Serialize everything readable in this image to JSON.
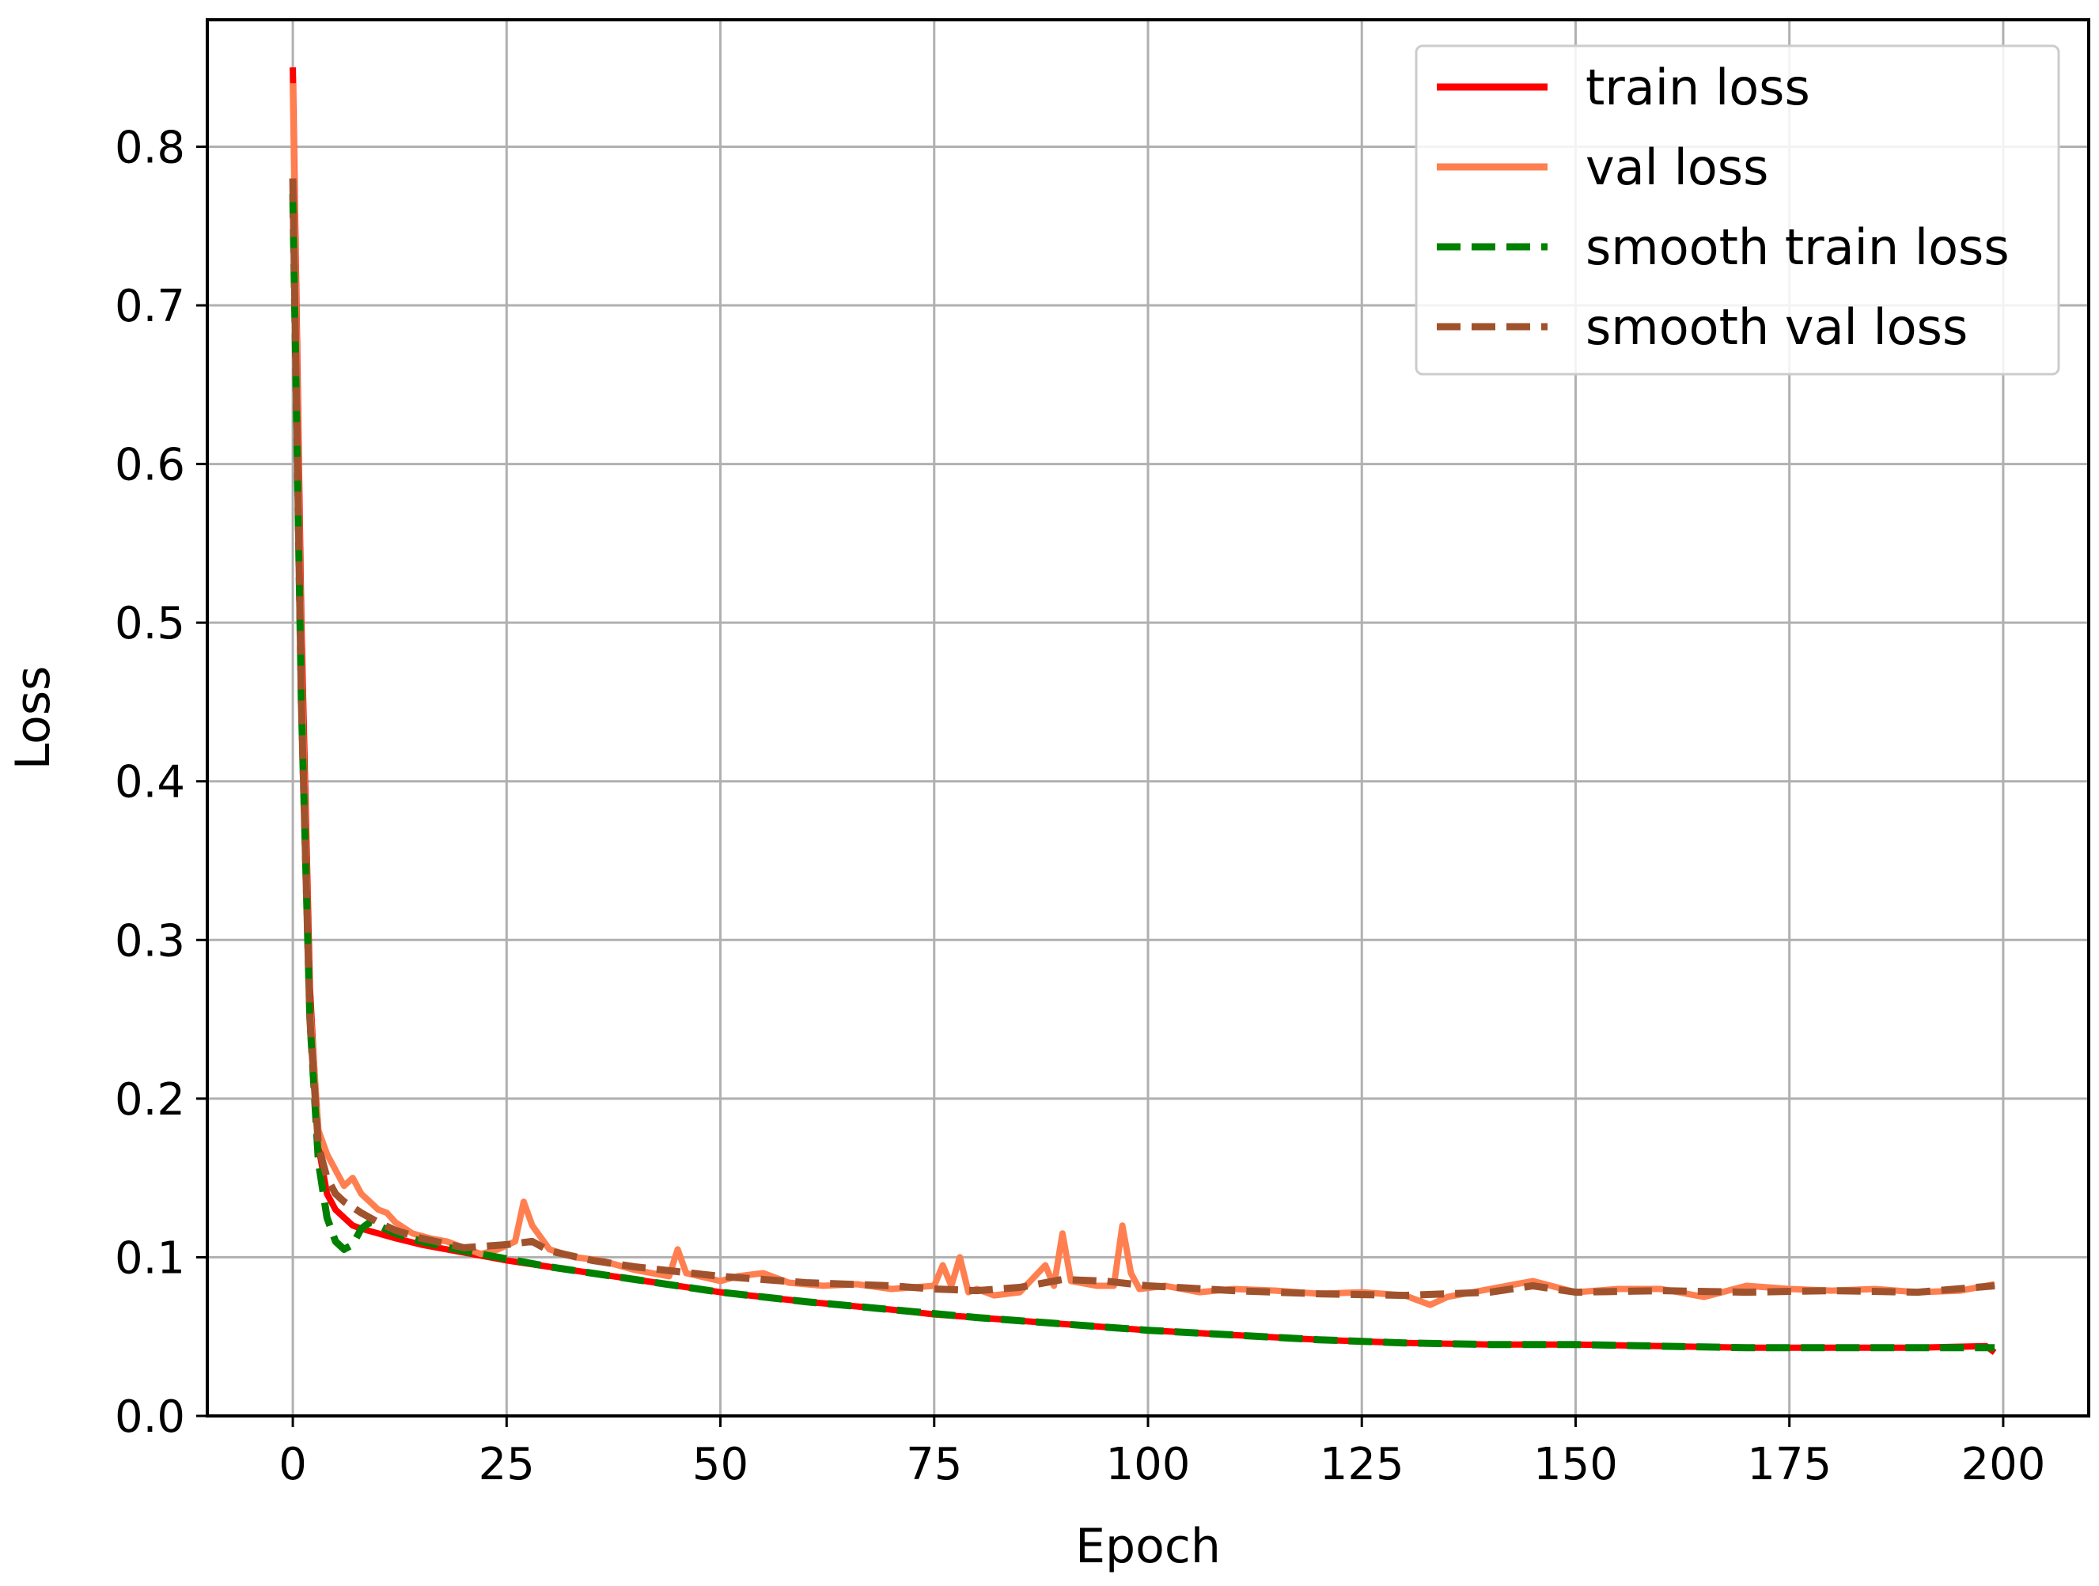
{
  "chart_data": {
    "type": "line",
    "title": "",
    "xlabel": "Epoch",
    "ylabel": "Loss",
    "xlim": [
      -10,
      210
    ],
    "ylim": [
      0.0,
      0.88
    ],
    "xticks": [
      0,
      25,
      50,
      75,
      100,
      125,
      150,
      175,
      200
    ],
    "xtick_labels": [
      "0",
      "25",
      "50",
      "75",
      "100",
      "125",
      "150",
      "175",
      "200"
    ],
    "yticks": [
      0.0,
      0.1,
      0.2,
      0.3,
      0.4,
      0.5,
      0.6,
      0.7,
      0.8
    ],
    "ytick_labels": [
      "0.0",
      "0.1",
      "0.2",
      "0.3",
      "0.4",
      "0.5",
      "0.6",
      "0.7",
      "0.8"
    ],
    "grid": true,
    "legend_position": "top-right",
    "series": [
      {
        "name": "train loss",
        "color": "#ff0000",
        "style": "solid",
        "x": [
          0,
          1,
          2,
          3,
          4,
          5,
          6,
          7,
          8,
          10,
          12,
          15,
          20,
          25,
          30,
          40,
          50,
          60,
          70,
          75,
          80,
          90,
          100,
          110,
          120,
          125,
          130,
          140,
          150,
          160,
          170,
          175,
          180,
          190,
          198,
          199
        ],
        "y": [
          0.85,
          0.5,
          0.27,
          0.17,
          0.14,
          0.13,
          0.125,
          0.12,
          0.118,
          0.115,
          0.112,
          0.108,
          0.103,
          0.098,
          0.094,
          0.086,
          0.078,
          0.072,
          0.067,
          0.064,
          0.062,
          0.058,
          0.054,
          0.051,
          0.048,
          0.047,
          0.046,
          0.045,
          0.045,
          0.044,
          0.043,
          0.043,
          0.043,
          0.043,
          0.044,
          0.04
        ]
      },
      {
        "name": "val loss",
        "color": "#ff7f50",
        "style": "solid",
        "x": [
          0,
          1,
          2,
          3,
          4,
          5,
          6,
          7,
          8,
          9,
          10,
          11,
          12,
          14,
          16,
          18,
          20,
          22,
          24,
          26,
          27,
          28,
          30,
          33,
          36,
          40,
          44,
          45,
          46,
          50,
          52,
          55,
          58,
          62,
          66,
          70,
          75,
          76,
          77,
          78,
          79,
          80,
          82,
          85,
          88,
          89,
          90,
          91,
          94,
          96,
          97,
          98,
          99,
          102,
          106,
          110,
          115,
          120,
          125,
          130,
          133,
          135,
          140,
          145,
          150,
          155,
          160,
          165,
          170,
          175,
          180,
          185,
          190,
          195,
          199
        ],
        "y": [
          0.84,
          0.48,
          0.26,
          0.18,
          0.165,
          0.155,
          0.145,
          0.15,
          0.14,
          0.135,
          0.13,
          0.128,
          0.122,
          0.115,
          0.112,
          0.11,
          0.106,
          0.102,
          0.105,
          0.11,
          0.135,
          0.12,
          0.105,
          0.1,
          0.098,
          0.092,
          0.088,
          0.105,
          0.09,
          0.085,
          0.088,
          0.09,
          0.084,
          0.082,
          0.083,
          0.08,
          0.082,
          0.095,
          0.082,
          0.1,
          0.078,
          0.08,
          0.076,
          0.078,
          0.095,
          0.082,
          0.115,
          0.085,
          0.082,
          0.082,
          0.12,
          0.09,
          0.08,
          0.082,
          0.078,
          0.08,
          0.079,
          0.077,
          0.078,
          0.076,
          0.07,
          0.075,
          0.08,
          0.085,
          0.078,
          0.08,
          0.08,
          0.075,
          0.082,
          0.08,
          0.079,
          0.08,
          0.078,
          0.079,
          0.083
        ]
      },
      {
        "name": "smooth train loss",
        "color": "#008000",
        "style": "dashed",
        "x": [
          0,
          1,
          2,
          3,
          4,
          5,
          6,
          7,
          8,
          9,
          10,
          12,
          15,
          20,
          25,
          30,
          40,
          50,
          60,
          70,
          80,
          90,
          100,
          110,
          120,
          130,
          140,
          150,
          160,
          170,
          180,
          190,
          199
        ],
        "y": [
          0.77,
          0.45,
          0.25,
          0.16,
          0.125,
          0.11,
          0.105,
          0.108,
          0.118,
          0.122,
          0.12,
          0.115,
          0.11,
          0.104,
          0.099,
          0.094,
          0.086,
          0.078,
          0.072,
          0.067,
          0.062,
          0.058,
          0.054,
          0.051,
          0.048,
          0.046,
          0.045,
          0.045,
          0.044,
          0.043,
          0.043,
          0.043,
          0.043
        ]
      },
      {
        "name": "smooth val loss",
        "color": "#a0522d",
        "style": "dashed",
        "x": [
          0,
          1,
          2,
          3,
          4,
          5,
          6,
          8,
          10,
          12,
          15,
          20,
          25,
          28,
          30,
          35,
          40,
          50,
          60,
          70,
          75,
          80,
          85,
          90,
          95,
          100,
          110,
          120,
          130,
          140,
          145,
          150,
          160,
          170,
          180,
          190,
          199
        ],
        "y": [
          0.78,
          0.45,
          0.25,
          0.17,
          0.15,
          0.14,
          0.135,
          0.128,
          0.122,
          0.117,
          0.112,
          0.106,
          0.108,
          0.11,
          0.104,
          0.098,
          0.094,
          0.088,
          0.084,
          0.082,
          0.08,
          0.079,
          0.081,
          0.086,
          0.085,
          0.082,
          0.079,
          0.077,
          0.076,
          0.078,
          0.082,
          0.078,
          0.079,
          0.078,
          0.079,
          0.078,
          0.082
        ]
      }
    ]
  }
}
